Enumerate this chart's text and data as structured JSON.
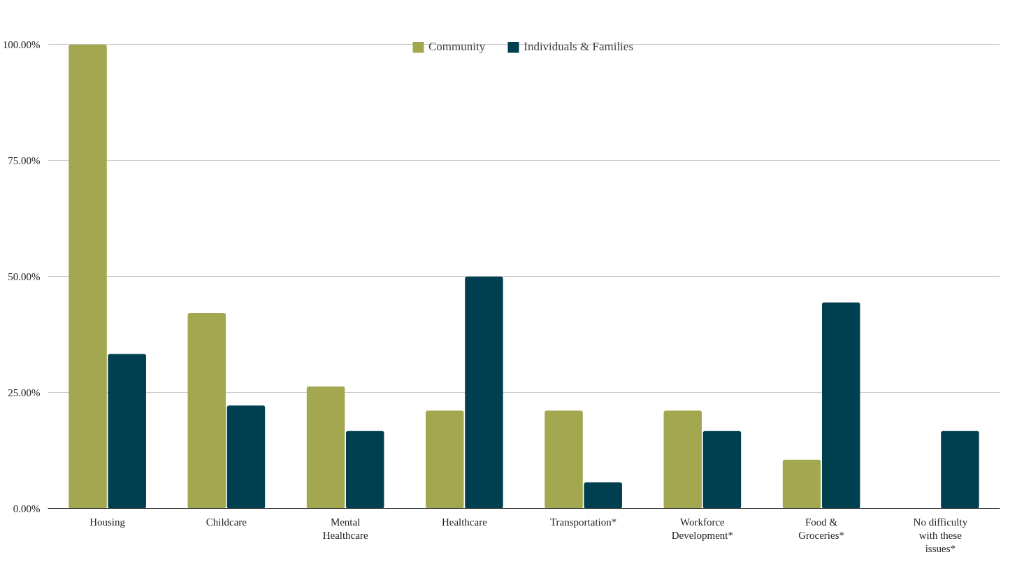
{
  "chart_data": {
    "type": "bar",
    "categories": [
      "Housing",
      "Childcare",
      "Mental Healthcare",
      "Healthcare",
      "Transportation*",
      "Workforce Development*",
      "Food & Groceries*",
      "No difficulty with these issues*"
    ],
    "series": [
      {
        "name": "Community",
        "color": "#a3a74f",
        "values": [
          100,
          42.1,
          26.3,
          21.1,
          21.1,
          21.1,
          10.5,
          0
        ]
      },
      {
        "name": "Individuals & Families",
        "color": "#003f4f",
        "values": [
          33.3,
          22.2,
          16.7,
          50,
          5.6,
          16.7,
          44.4,
          16.7
        ]
      }
    ],
    "ylim": [
      0,
      100
    ],
    "yticks": [
      {
        "value": 0,
        "label": "0.00%"
      },
      {
        "value": 25,
        "label": "25.00%"
      },
      {
        "value": 50,
        "label": "50.00%"
      },
      {
        "value": 75,
        "label": "75.00%"
      },
      {
        "value": 100,
        "label": "100.00%"
      }
    ],
    "grid": "y",
    "legend": "top"
  }
}
